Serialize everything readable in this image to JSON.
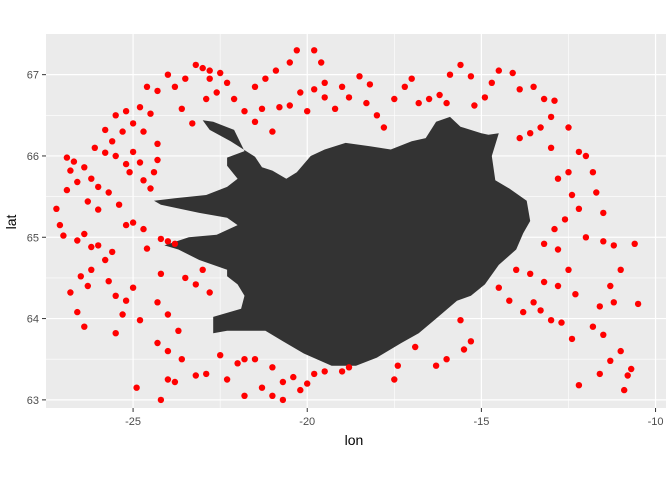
{
  "chart_data": {
    "type": "scatter",
    "title": "",
    "xlabel": "lon",
    "ylabel": "lat",
    "xlim": [
      -27.5,
      -9.7
    ],
    "ylim": [
      62.9,
      67.5
    ],
    "x_ticks": [
      -25,
      -20,
      -15,
      -10
    ],
    "x_tick_labels": [
      "-25",
      "-20",
      "-15",
      "-10"
    ],
    "y_ticks": [
      63,
      64,
      65,
      66,
      67
    ],
    "y_tick_labels": [
      "63",
      "64",
      "65",
      "66",
      "67"
    ],
    "grid": true,
    "legend": "none",
    "panel_color": "#ebebeb",
    "grid_color": "#ffffff",
    "land_color": "#333333",
    "point_color": "#ff0000",
    "landmass_outline": [
      [
        -24.4,
        65.45
      ],
      [
        -23.8,
        65.48
      ],
      [
        -22.9,
        65.52
      ],
      [
        -22.3,
        65.62
      ],
      [
        -22.0,
        65.72
      ],
      [
        -22.3,
        65.88
      ],
      [
        -22.3,
        65.98
      ],
      [
        -21.8,
        66.06
      ],
      [
        -22.1,
        66.32
      ],
      [
        -22.7,
        66.42
      ],
      [
        -23.0,
        66.44
      ],
      [
        -22.8,
        66.32
      ],
      [
        -22.2,
        66.18
      ],
      [
        -21.5,
        65.99
      ],
      [
        -21.3,
        65.86
      ],
      [
        -21.0,
        65.82
      ],
      [
        -20.6,
        65.72
      ],
      [
        -20.3,
        65.8
      ],
      [
        -19.9,
        66.0
      ],
      [
        -19.5,
        66.08
      ],
      [
        -18.9,
        66.16
      ],
      [
        -18.2,
        66.12
      ],
      [
        -17.6,
        66.08
      ],
      [
        -17.0,
        66.18
      ],
      [
        -16.6,
        66.22
      ],
      [
        -16.3,
        66.42
      ],
      [
        -15.9,
        66.48
      ],
      [
        -15.6,
        66.36
      ],
      [
        -15.0,
        66.28
      ],
      [
        -14.8,
        66.26
      ],
      [
        -14.5,
        66.28
      ],
      [
        -14.7,
        66.0
      ],
      [
        -14.6,
        65.7
      ],
      [
        -14.2,
        65.6
      ],
      [
        -13.7,
        65.45
      ],
      [
        -13.6,
        65.2
      ],
      [
        -13.8,
        65.05
      ],
      [
        -14.0,
        64.85
      ],
      [
        -14.5,
        64.66
      ],
      [
        -14.9,
        64.42
      ],
      [
        -15.3,
        64.28
      ],
      [
        -15.7,
        64.22
      ],
      [
        -16.3,
        64.0
      ],
      [
        -16.8,
        63.82
      ],
      [
        -17.3,
        63.7
      ],
      [
        -18.0,
        63.52
      ],
      [
        -18.6,
        63.42
      ],
      [
        -19.3,
        63.42
      ],
      [
        -20.1,
        63.57
      ],
      [
        -20.7,
        63.72
      ],
      [
        -21.2,
        63.85
      ],
      [
        -21.7,
        63.85
      ],
      [
        -22.3,
        63.85
      ],
      [
        -22.7,
        63.82
      ],
      [
        -22.7,
        64.02
      ],
      [
        -21.9,
        64.12
      ],
      [
        -21.8,
        64.28
      ],
      [
        -22.0,
        64.42
      ],
      [
        -22.3,
        64.52
      ],
      [
        -22.3,
        64.6
      ],
      [
        -23.1,
        64.72
      ],
      [
        -23.7,
        64.85
      ],
      [
        -24.1,
        64.9
      ],
      [
        -23.4,
        65.0
      ],
      [
        -22.6,
        65.03
      ],
      [
        -22.0,
        65.15
      ],
      [
        -22.3,
        65.24
      ],
      [
        -23.1,
        65.3
      ],
      [
        -24.2,
        65.4
      ]
    ],
    "series": [
      {
        "points": [
          [
            -27.2,
            65.35
          ],
          [
            -27.1,
            65.15
          ],
          [
            -27.0,
            65.02
          ],
          [
            -26.8,
            64.32
          ],
          [
            -26.6,
            64.08
          ],
          [
            -26.4,
            63.9
          ],
          [
            -26.5,
            64.52
          ],
          [
            -26.3,
            64.4
          ],
          [
            -26.2,
            64.6
          ],
          [
            -26.6,
            64.96
          ],
          [
            -26.4,
            65.04
          ],
          [
            -26.2,
            64.88
          ],
          [
            -26.0,
            64.9
          ],
          [
            -25.6,
            64.82
          ],
          [
            -25.8,
            64.72
          ],
          [
            -25.7,
            64.46
          ],
          [
            -25.5,
            64.28
          ],
          [
            -25.2,
            64.22
          ],
          [
            -25.0,
            64.38
          ],
          [
            -25.3,
            64.05
          ],
          [
            -25.5,
            63.82
          ],
          [
            -26.9,
            65.58
          ],
          [
            -26.8,
            65.82
          ],
          [
            -26.9,
            65.98
          ],
          [
            -26.7,
            65.93
          ],
          [
            -26.4,
            65.86
          ],
          [
            -26.6,
            65.68
          ],
          [
            -26.2,
            65.72
          ],
          [
            -26.0,
            65.62
          ],
          [
            -26.3,
            65.44
          ],
          [
            -26.0,
            65.34
          ],
          [
            -25.7,
            65.55
          ],
          [
            -25.4,
            65.4
          ],
          [
            -25.8,
            66.04
          ],
          [
            -25.6,
            66.18
          ],
          [
            -25.8,
            66.32
          ],
          [
            -26.1,
            66.1
          ],
          [
            -25.5,
            66.0
          ],
          [
            -25.2,
            65.9
          ],
          [
            -25.0,
            66.05
          ],
          [
            -25.3,
            66.3
          ],
          [
            -25.5,
            66.5
          ],
          [
            -25.2,
            66.55
          ],
          [
            -25.0,
            66.4
          ],
          [
            -24.8,
            66.6
          ],
          [
            -24.5,
            66.52
          ],
          [
            -24.7,
            66.3
          ],
          [
            -24.3,
            66.15
          ],
          [
            -24.8,
            65.92
          ],
          [
            -24.4,
            65.8
          ],
          [
            -24.7,
            65.7
          ],
          [
            -25.1,
            65.8
          ],
          [
            -24.3,
            65.95
          ],
          [
            -24.5,
            65.6
          ],
          [
            -25.2,
            65.15
          ],
          [
            -25.0,
            65.18
          ],
          [
            -24.7,
            65.1
          ],
          [
            -24.6,
            64.86
          ],
          [
            -24.2,
            64.98
          ],
          [
            -24.0,
            64.95
          ],
          [
            -23.8,
            64.92
          ],
          [
            -23.5,
            64.5
          ],
          [
            -23.2,
            64.42
          ],
          [
            -23.0,
            64.6
          ],
          [
            -22.8,
            64.32
          ],
          [
            -24.2,
            64.55
          ],
          [
            -24.3,
            64.2
          ],
          [
            -24.0,
            64.05
          ],
          [
            -23.7,
            63.85
          ],
          [
            -24.8,
            63.98
          ],
          [
            -24.3,
            63.7
          ],
          [
            -24.0,
            63.6
          ],
          [
            -23.6,
            63.5
          ],
          [
            -23.2,
            63.3
          ],
          [
            -22.9,
            63.32
          ],
          [
            -22.5,
            63.55
          ],
          [
            -22.3,
            63.25
          ],
          [
            -22.0,
            63.45
          ],
          [
            -21.8,
            63.5
          ],
          [
            -21.5,
            63.5
          ],
          [
            -21.0,
            63.4
          ],
          [
            -20.7,
            63.22
          ],
          [
            -20.4,
            63.28
          ],
          [
            -20.2,
            63.12
          ],
          [
            -20.0,
            63.2
          ],
          [
            -19.8,
            63.32
          ],
          [
            -19.5,
            63.35
          ],
          [
            -19.0,
            63.35
          ],
          [
            -18.8,
            63.4
          ],
          [
            -17.5,
            63.25
          ],
          [
            -17.4,
            63.42
          ],
          [
            -16.9,
            63.65
          ],
          [
            -16.3,
            63.42
          ],
          [
            -16.0,
            63.5
          ],
          [
            -15.5,
            63.62
          ],
          [
            -15.3,
            63.72
          ],
          [
            -15.6,
            63.98
          ],
          [
            -24.9,
            63.15
          ],
          [
            -24.2,
            63.0
          ],
          [
            -24.0,
            63.25
          ],
          [
            -23.8,
            63.22
          ],
          [
            -21.8,
            63.05
          ],
          [
            -21.3,
            63.15
          ],
          [
            -21.0,
            63.05
          ],
          [
            -20.7,
            63.0
          ],
          [
            -19.2,
            66.58
          ],
          [
            -19.5,
            66.72
          ],
          [
            -19.8,
            66.82
          ],
          [
            -20.2,
            66.78
          ],
          [
            -20.5,
            66.62
          ],
          [
            -20.8,
            66.6
          ],
          [
            -20.0,
            66.55
          ],
          [
            -21.3,
            66.58
          ],
          [
            -21.0,
            66.3
          ],
          [
            -21.5,
            66.42
          ],
          [
            -21.8,
            66.55
          ],
          [
            -22.1,
            66.7
          ],
          [
            -22.3,
            66.9
          ],
          [
            -22.5,
            67.02
          ],
          [
            -22.8,
            67.05
          ],
          [
            -23.0,
            67.08
          ],
          [
            -23.2,
            67.12
          ],
          [
            -23.5,
            66.95
          ],
          [
            -23.8,
            66.85
          ],
          [
            -24.0,
            67.0
          ],
          [
            -24.3,
            66.8
          ],
          [
            -24.6,
            66.85
          ],
          [
            -23.6,
            66.58
          ],
          [
            -23.3,
            66.4
          ],
          [
            -22.9,
            66.7
          ],
          [
            -22.6,
            66.78
          ],
          [
            -22.8,
            66.95
          ],
          [
            -21.5,
            66.85
          ],
          [
            -21.2,
            66.95
          ],
          [
            -20.9,
            67.05
          ],
          [
            -20.5,
            67.15
          ],
          [
            -20.3,
            67.3
          ],
          [
            -19.8,
            67.3
          ],
          [
            -19.6,
            67.15
          ],
          [
            -19.5,
            66.9
          ],
          [
            -19.0,
            66.85
          ],
          [
            -18.8,
            66.72
          ],
          [
            -18.5,
            66.98
          ],
          [
            -18.2,
            66.88
          ],
          [
            -18.3,
            66.65
          ],
          [
            -18.0,
            66.5
          ],
          [
            -17.8,
            66.35
          ],
          [
            -17.5,
            66.7
          ],
          [
            -17.2,
            66.85
          ],
          [
            -17.0,
            66.95
          ],
          [
            -16.8,
            66.65
          ],
          [
            -16.5,
            66.7
          ],
          [
            -16.2,
            66.75
          ],
          [
            -16.0,
            66.65
          ],
          [
            -15.9,
            67.0
          ],
          [
            -15.6,
            67.12
          ],
          [
            -15.3,
            66.98
          ],
          [
            -15.2,
            66.62
          ],
          [
            -14.9,
            66.72
          ],
          [
            -14.7,
            66.9
          ],
          [
            -14.5,
            67.05
          ],
          [
            -14.1,
            67.02
          ],
          [
            -13.9,
            66.82
          ],
          [
            -13.5,
            66.85
          ],
          [
            -13.2,
            66.7
          ],
          [
            -12.9,
            66.68
          ],
          [
            -13.0,
            66.48
          ],
          [
            -13.3,
            66.35
          ],
          [
            -13.6,
            66.28
          ],
          [
            -13.9,
            66.22
          ],
          [
            -13.0,
            66.1
          ],
          [
            -12.5,
            66.35
          ],
          [
            -12.2,
            66.05
          ],
          [
            -12.0,
            66.0
          ],
          [
            -11.8,
            65.8
          ],
          [
            -11.7,
            65.55
          ],
          [
            -11.5,
            65.3
          ],
          [
            -12.5,
            65.8
          ],
          [
            -12.8,
            65.72
          ],
          [
            -12.4,
            65.52
          ],
          [
            -12.2,
            65.35
          ],
          [
            -12.6,
            65.22
          ],
          [
            -12.9,
            65.1
          ],
          [
            -12.0,
            65.0
          ],
          [
            -11.5,
            64.95
          ],
          [
            -11.2,
            64.9
          ],
          [
            -10.6,
            64.92
          ],
          [
            -11.0,
            64.6
          ],
          [
            -11.3,
            64.4
          ],
          [
            -11.6,
            64.15
          ],
          [
            -11.8,
            63.9
          ],
          [
            -11.2,
            64.2
          ],
          [
            -11.5,
            63.8
          ],
          [
            -10.5,
            64.18
          ],
          [
            -11.0,
            63.6
          ],
          [
            -11.3,
            63.48
          ],
          [
            -10.8,
            63.3
          ],
          [
            -10.7,
            63.38
          ],
          [
            -10.9,
            63.12
          ],
          [
            -11.6,
            63.32
          ],
          [
            -12.2,
            63.18
          ],
          [
            -12.4,
            63.75
          ],
          [
            -12.7,
            63.95
          ],
          [
            -13.0,
            63.98
          ],
          [
            -13.3,
            64.1
          ],
          [
            -13.5,
            64.2
          ],
          [
            -13.8,
            64.08
          ],
          [
            -14.2,
            64.22
          ],
          [
            -14.5,
            64.38
          ],
          [
            -14.0,
            64.6
          ],
          [
            -12.5,
            64.6
          ],
          [
            -12.8,
            64.4
          ],
          [
            -12.3,
            64.3
          ],
          [
            -13.2,
            64.45
          ],
          [
            -13.6,
            64.55
          ],
          [
            -12.8,
            64.85
          ],
          [
            -13.2,
            64.92
          ]
        ]
      }
    ]
  }
}
